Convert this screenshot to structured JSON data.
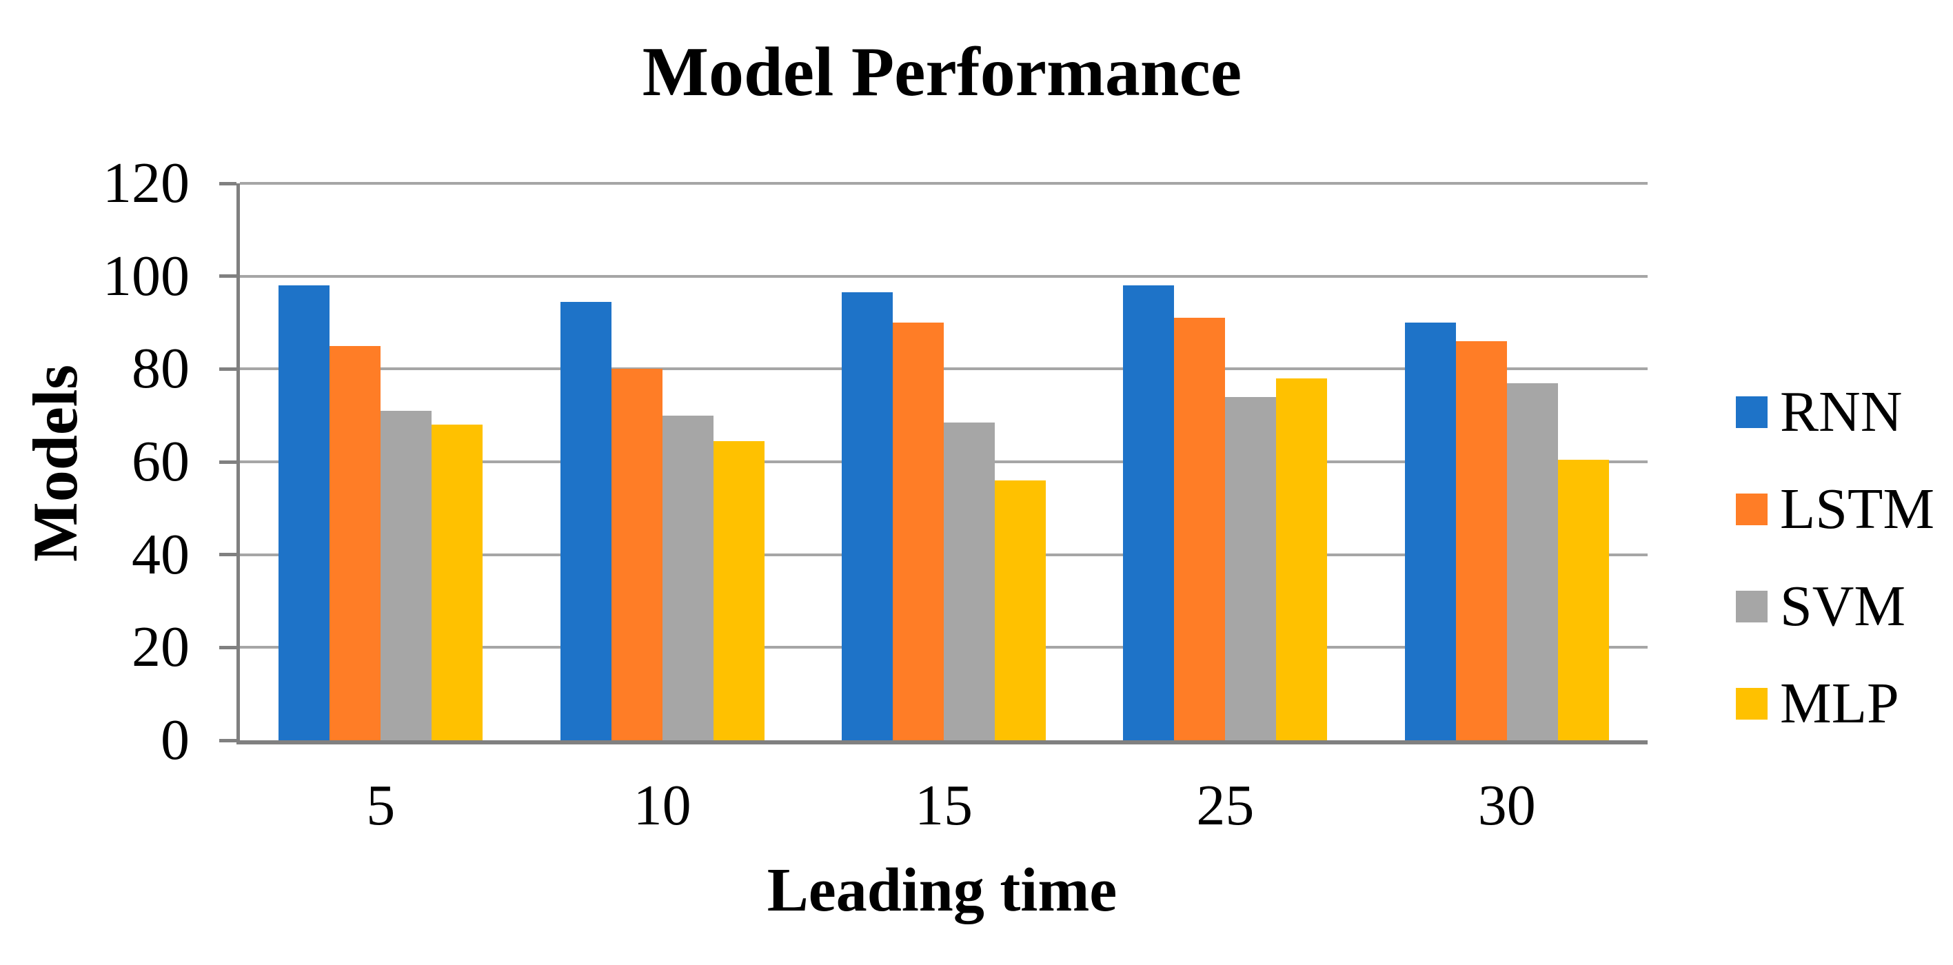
{
  "chart_data": {
    "type": "bar",
    "title": "Model Performance",
    "xlabel": "Leading time",
    "ylabel": "Models",
    "categories": [
      "5",
      "10",
      "15",
      "25",
      "30"
    ],
    "series": [
      {
        "name": "RNN",
        "color": "#1E73C8",
        "values": [
          98,
          94.5,
          96.5,
          98,
          90
        ]
      },
      {
        "name": "LSTM",
        "color": "#FF7D26",
        "values": [
          85,
          80,
          90,
          91,
          86
        ]
      },
      {
        "name": "SVM",
        "color": "#A6A6A6",
        "values": [
          71,
          70,
          68.5,
          74,
          77
        ]
      },
      {
        "name": "MLP",
        "color": "#FFC100",
        "values": [
          68,
          64.5,
          56,
          78,
          60.5
        ]
      }
    ],
    "y_axis": {
      "min": 0,
      "max": 120,
      "step": 20,
      "tick_labels": [
        "0",
        "20",
        "40",
        "60",
        "80",
        "100",
        "120"
      ]
    },
    "x_axis": {
      "tick_labels": [
        "5",
        "10",
        "15",
        "25",
        "30"
      ]
    },
    "legend": {
      "position": "right",
      "entries": [
        "RNN",
        "LSTM",
        "SVM",
        "MLP"
      ]
    },
    "grid": {
      "show": true
    },
    "styles": {
      "grid_color": "#A6A6A6",
      "axis_color": "#808080",
      "background": "#FFFFFF",
      "text_color": "#000000"
    }
  }
}
